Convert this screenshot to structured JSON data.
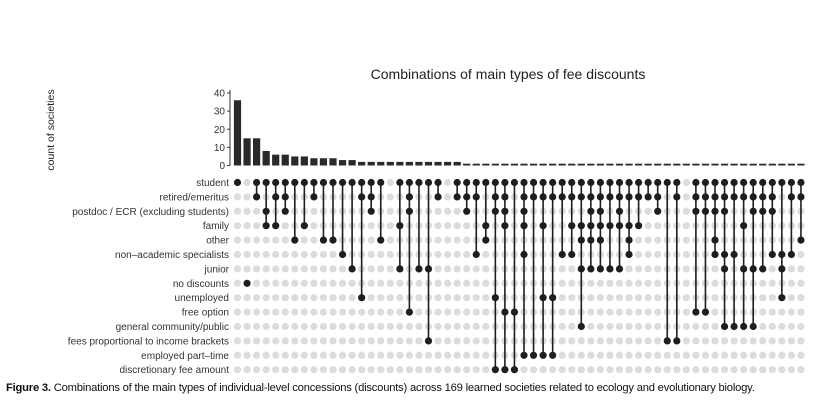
{
  "chart_data": {
    "type": "bar",
    "title": "Combinations of main types of fee discounts",
    "ylabel": "count of societies",
    "ylim": [
      0,
      40
    ],
    "yticks": [
      0,
      10,
      20,
      30,
      40
    ],
    "sets": [
      "student",
      "retired/emeritus",
      "postdoc / ECR (excluding students)",
      "family",
      "other",
      "non–academic specialists",
      "junior",
      "no discounts",
      "unemployed",
      "free option",
      "general community/public",
      "fees proportional to income brackets",
      "employed part–time",
      "discretionary fee amount"
    ],
    "values": [
      36,
      15,
      15,
      8,
      6,
      6,
      5,
      5,
      4,
      4,
      4,
      3,
      3,
      2,
      2,
      2,
      2,
      2,
      2,
      2,
      2,
      2,
      2,
      2,
      1,
      1,
      1,
      1,
      1,
      1,
      1,
      1,
      1,
      1,
      1,
      1,
      1,
      1,
      1,
      1,
      1,
      1,
      1,
      1,
      1,
      1,
      1,
      1,
      1,
      1,
      1,
      1,
      1,
      1,
      1,
      1,
      1,
      1,
      1,
      1
    ],
    "membership": [
      [
        0
      ],
      [
        7
      ],
      [
        0,
        1
      ],
      [
        0,
        2,
        3
      ],
      [
        0,
        1,
        3
      ],
      [
        0,
        1,
        2
      ],
      [
        0,
        4
      ],
      [
        0,
        3
      ],
      [
        0,
        1
      ],
      [
        0,
        4
      ],
      [
        0,
        4
      ],
      [
        0,
        5
      ],
      [
        0,
        6
      ],
      [
        0,
        1,
        8
      ],
      [
        0,
        1,
        2
      ],
      [
        0,
        4
      ],
      [],
      [
        0,
        3,
        6
      ],
      [
        0,
        1,
        2,
        9
      ],
      [
        0,
        6
      ],
      [
        0,
        6,
        11
      ],
      [
        0,
        1
      ],
      [],
      [
        0,
        1
      ],
      [
        0,
        1,
        2
      ],
      [
        0,
        1,
        5
      ],
      [
        0,
        3,
        4
      ],
      [
        0,
        1,
        2,
        8,
        13
      ],
      [
        0,
        1,
        2,
        3,
        9,
        13
      ],
      [
        0,
        9,
        13
      ],
      [
        0,
        1,
        2,
        3,
        5,
        12
      ],
      [
        0,
        1,
        12
      ],
      [
        0,
        1,
        3,
        8,
        12
      ],
      [
        0,
        1,
        8,
        12
      ],
      [
        0,
        1,
        5
      ],
      [
        0,
        1,
        3,
        5
      ],
      [
        0,
        1,
        3,
        4,
        6,
        10
      ],
      [
        0,
        1,
        2,
        3,
        4,
        6
      ],
      [
        0,
        1,
        2,
        3,
        4,
        6
      ],
      [
        0,
        1,
        3,
        6
      ],
      [
        0,
        1,
        2,
        3,
        6
      ],
      [
        0,
        1,
        3,
        4,
        5
      ],
      [
        0,
        1,
        3
      ],
      [
        0,
        1
      ],
      [
        0,
        1,
        2
      ],
      [
        0,
        11
      ],
      [
        0,
        1,
        11
      ],
      [],
      [
        0,
        1,
        2,
        9
      ],
      [
        0,
        1,
        2,
        9
      ],
      [
        0,
        1,
        2,
        4,
        5
      ],
      [
        0,
        1,
        2,
        5,
        6,
        10
      ],
      [
        0,
        1,
        5,
        10
      ],
      [
        0,
        1,
        3,
        6,
        10
      ],
      [
        0,
        1,
        2,
        6,
        10
      ],
      [
        0,
        1,
        2,
        6
      ],
      [
        0,
        1,
        2,
        5
      ],
      [
        0,
        5,
        6,
        8
      ],
      [
        0,
        1,
        5
      ],
      [
        0,
        1,
        4
      ]
    ]
  },
  "caption": {
    "label": "Figure 3.",
    "text": " Combinations of the main types of individual-level concessions (discounts) across 169 learned societies related to ecology and evolutionary biology."
  },
  "colors": {
    "bar": "#2a2a2a",
    "dot_on": "#1e1e1e",
    "dot_off": "#dcdcdc"
  }
}
